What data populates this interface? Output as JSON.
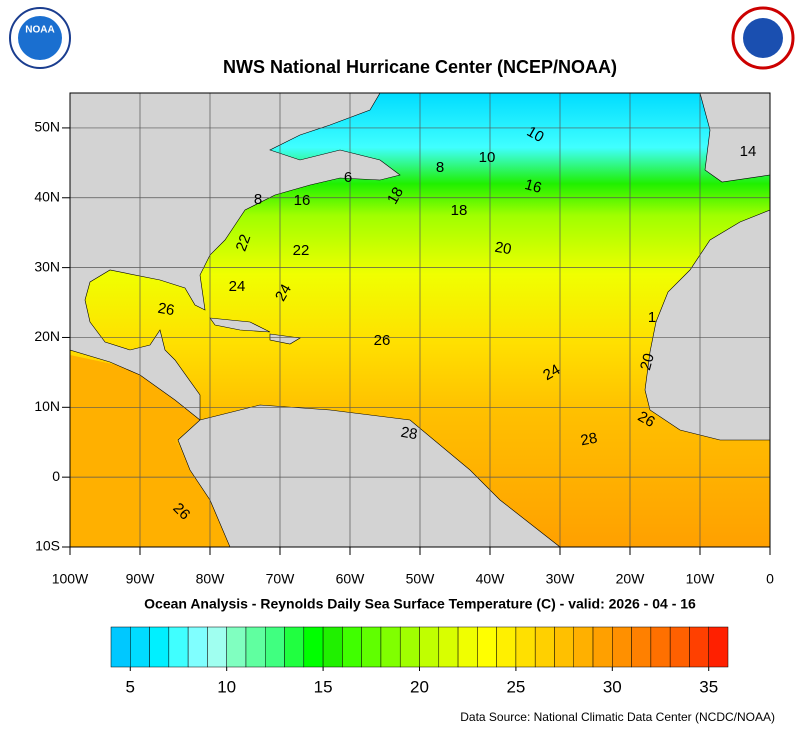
{
  "header": {
    "title": "NWS National Hurricane Center (NCEP/NOAA)"
  },
  "logos": {
    "noaa": "NOAA"
  },
  "map": {
    "xlim": [
      -100,
      0
    ],
    "ylim": [
      -10,
      55
    ],
    "xticks": [
      {
        "value": -100,
        "label": "100W"
      },
      {
        "value": -90,
        "label": "90W"
      },
      {
        "value": -80,
        "label": "80W"
      },
      {
        "value": -70,
        "label": "70W"
      },
      {
        "value": -60,
        "label": "60W"
      },
      {
        "value": -50,
        "label": "50W"
      },
      {
        "value": -40,
        "label": "40W"
      },
      {
        "value": -30,
        "label": "30W"
      },
      {
        "value": -20,
        "label": "20W"
      },
      {
        "value": -10,
        "label": "10W"
      },
      0
    ],
    "yticks": [
      {
        "value": -10,
        "label": "10S"
      },
      0,
      {
        "value": 10,
        "label": "10N"
      },
      {
        "value": 20,
        "label": "20N"
      },
      {
        "value": 30,
        "label": "30N"
      },
      {
        "value": 40,
        "label": "40N"
      },
      {
        "value": 50,
        "label": "50N"
      }
    ],
    "contour_labels": [
      8,
      6,
      16,
      18,
      8,
      10,
      10,
      14,
      16,
      18,
      22,
      22,
      20,
      24,
      24,
      26,
      26,
      1,
      20,
      24,
      26,
      28,
      28,
      26
    ],
    "caption": "Ocean Analysis - Reynolds Daily Sea Surface Temperature (C) - valid: 2026 - 04 - 16"
  },
  "colorbar": {
    "range": [
      4,
      36
    ],
    "ticks": [
      5,
      10,
      15,
      20,
      25,
      30,
      35
    ],
    "colors": [
      "#00c8ff",
      "#00dcff",
      "#00f0ff",
      "#40ffff",
      "#80ffff",
      "#a0fff0",
      "#80ffc0",
      "#60ffa0",
      "#40ff80",
      "#20ff40",
      "#00ff00",
      "#20f000",
      "#40ff00",
      "#60ff00",
      "#80ff00",
      "#a0ff00",
      "#c0ff00",
      "#d8ff00",
      "#f0ff00",
      "#ffff00",
      "#fff000",
      "#ffe000",
      "#ffd000",
      "#ffc000",
      "#ffb000",
      "#ffa000",
      "#ff9000",
      "#ff8000",
      "#ff7000",
      "#ff6000",
      "#ff4000",
      "#ff2000"
    ]
  },
  "footer": {
    "source": "Data Source: National Climatic Data Center (NCDC/NOAA)"
  }
}
